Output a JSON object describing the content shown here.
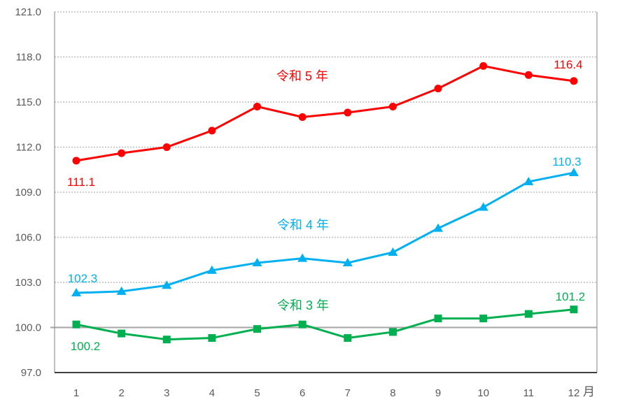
{
  "chart_data": {
    "type": "line",
    "title": "",
    "xlabel": "月",
    "ylabel": "",
    "categories": [
      "1",
      "2",
      "3",
      "4",
      "5",
      "6",
      "7",
      "8",
      "9",
      "10",
      "11",
      "12"
    ],
    "x_unit_label": "月",
    "ylim": [
      97.0,
      121.0
    ],
    "yticks": [
      "121.0",
      "118.0",
      "115.0",
      "112.0",
      "109.0",
      "106.0",
      "103.0",
      "100.0",
      "97.0"
    ],
    "grid": "horizontal dotted",
    "reference_line": 100.0,
    "legend": "inline labels",
    "series": [
      {
        "name": "令和５年",
        "label": "令和 5 年",
        "color": "#ff0000",
        "marker": "circle",
        "values": [
          111.1,
          111.6,
          112.0,
          113.1,
          114.7,
          114.0,
          114.3,
          114.7,
          115.9,
          117.4,
          116.8,
          116.4
        ],
        "first_label": "111.1",
        "last_label": "116.4"
      },
      {
        "name": "令和４年",
        "label": "令和 4 年",
        "color": "#00b0f0",
        "marker": "triangle",
        "values": [
          102.3,
          102.4,
          102.8,
          103.8,
          104.3,
          104.6,
          104.3,
          105.0,
          106.6,
          108.0,
          109.7,
          110.3
        ],
        "first_label": "102.3",
        "last_label": "110.3"
      },
      {
        "name": "令和３年",
        "label": "令和 3 年",
        "color": "#00b050",
        "marker": "square",
        "values": [
          100.2,
          99.6,
          99.2,
          99.3,
          99.9,
          100.2,
          99.3,
          99.7,
          100.6,
          100.6,
          100.9,
          101.2
        ],
        "first_label": "100.2",
        "last_label": "101.2"
      }
    ]
  }
}
